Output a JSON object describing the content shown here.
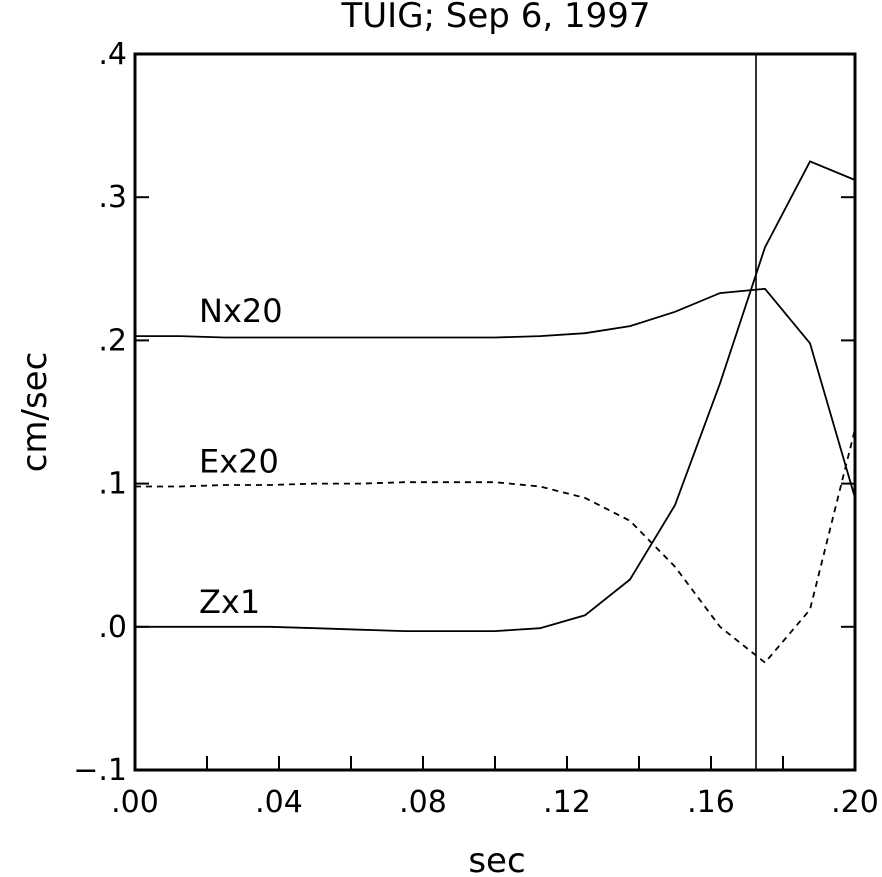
{
  "chart_data": {
    "type": "line",
    "title": "TUIG; Sep 6, 1997",
    "xlabel": "sec",
    "ylabel": "cm/sec",
    "xlim": [
      0.0,
      0.2
    ],
    "ylim": [
      -0.1,
      0.4
    ],
    "x_ticks": [
      ".00",
      ".04",
      ".08",
      ".12",
      ".16",
      ".20"
    ],
    "x_tick_values": [
      0.0,
      0.04,
      0.08,
      0.12,
      0.16,
      0.2
    ],
    "x_minor_step": 0.02,
    "y_ticks": [
      ".4",
      ".3",
      ".2",
      ".1",
      ".0",
      "−.1"
    ],
    "y_tick_values": [
      0.4,
      0.3,
      0.2,
      0.1,
      0.0,
      -0.1
    ],
    "y_minor_step": 0.1,
    "grid": false,
    "vline_x": 0.1725,
    "series": [
      {
        "name": "Nx20",
        "style": "solid",
        "x": [
          0.0,
          0.0125,
          0.025,
          0.0375,
          0.05,
          0.0625,
          0.075,
          0.0875,
          0.1,
          0.1125,
          0.125,
          0.1375,
          0.15,
          0.1625,
          0.175,
          0.1875,
          0.2
        ],
        "y": [
          0.203,
          0.203,
          0.202,
          0.202,
          0.202,
          0.202,
          0.202,
          0.202,
          0.202,
          0.203,
          0.205,
          0.21,
          0.22,
          0.233,
          0.236,
          0.198,
          0.09
        ]
      },
      {
        "name": "Ex20",
        "style": "dashed",
        "x": [
          0.0,
          0.0125,
          0.025,
          0.0375,
          0.05,
          0.0625,
          0.075,
          0.0875,
          0.1,
          0.1125,
          0.125,
          0.1375,
          0.15,
          0.1625,
          0.175,
          0.1875,
          0.2
        ],
        "y": [
          0.098,
          0.098,
          0.099,
          0.099,
          0.1,
          0.1,
          0.101,
          0.101,
          0.101,
          0.098,
          0.09,
          0.074,
          0.042,
          0.0,
          -0.025,
          0.012,
          0.138
        ]
      },
      {
        "name": "Zx1",
        "style": "solid",
        "x": [
          0.0,
          0.0125,
          0.025,
          0.0375,
          0.05,
          0.0625,
          0.075,
          0.0875,
          0.1,
          0.1125,
          0.125,
          0.1375,
          0.15,
          0.1625,
          0.175,
          0.1875,
          0.2
        ],
        "y": [
          0.0,
          0.0,
          0.0,
          0.0,
          -0.001,
          -0.002,
          -0.003,
          -0.003,
          -0.003,
          -0.001,
          0.008,
          0.033,
          0.085,
          0.17,
          0.265,
          0.325,
          0.312
        ]
      }
    ]
  }
}
